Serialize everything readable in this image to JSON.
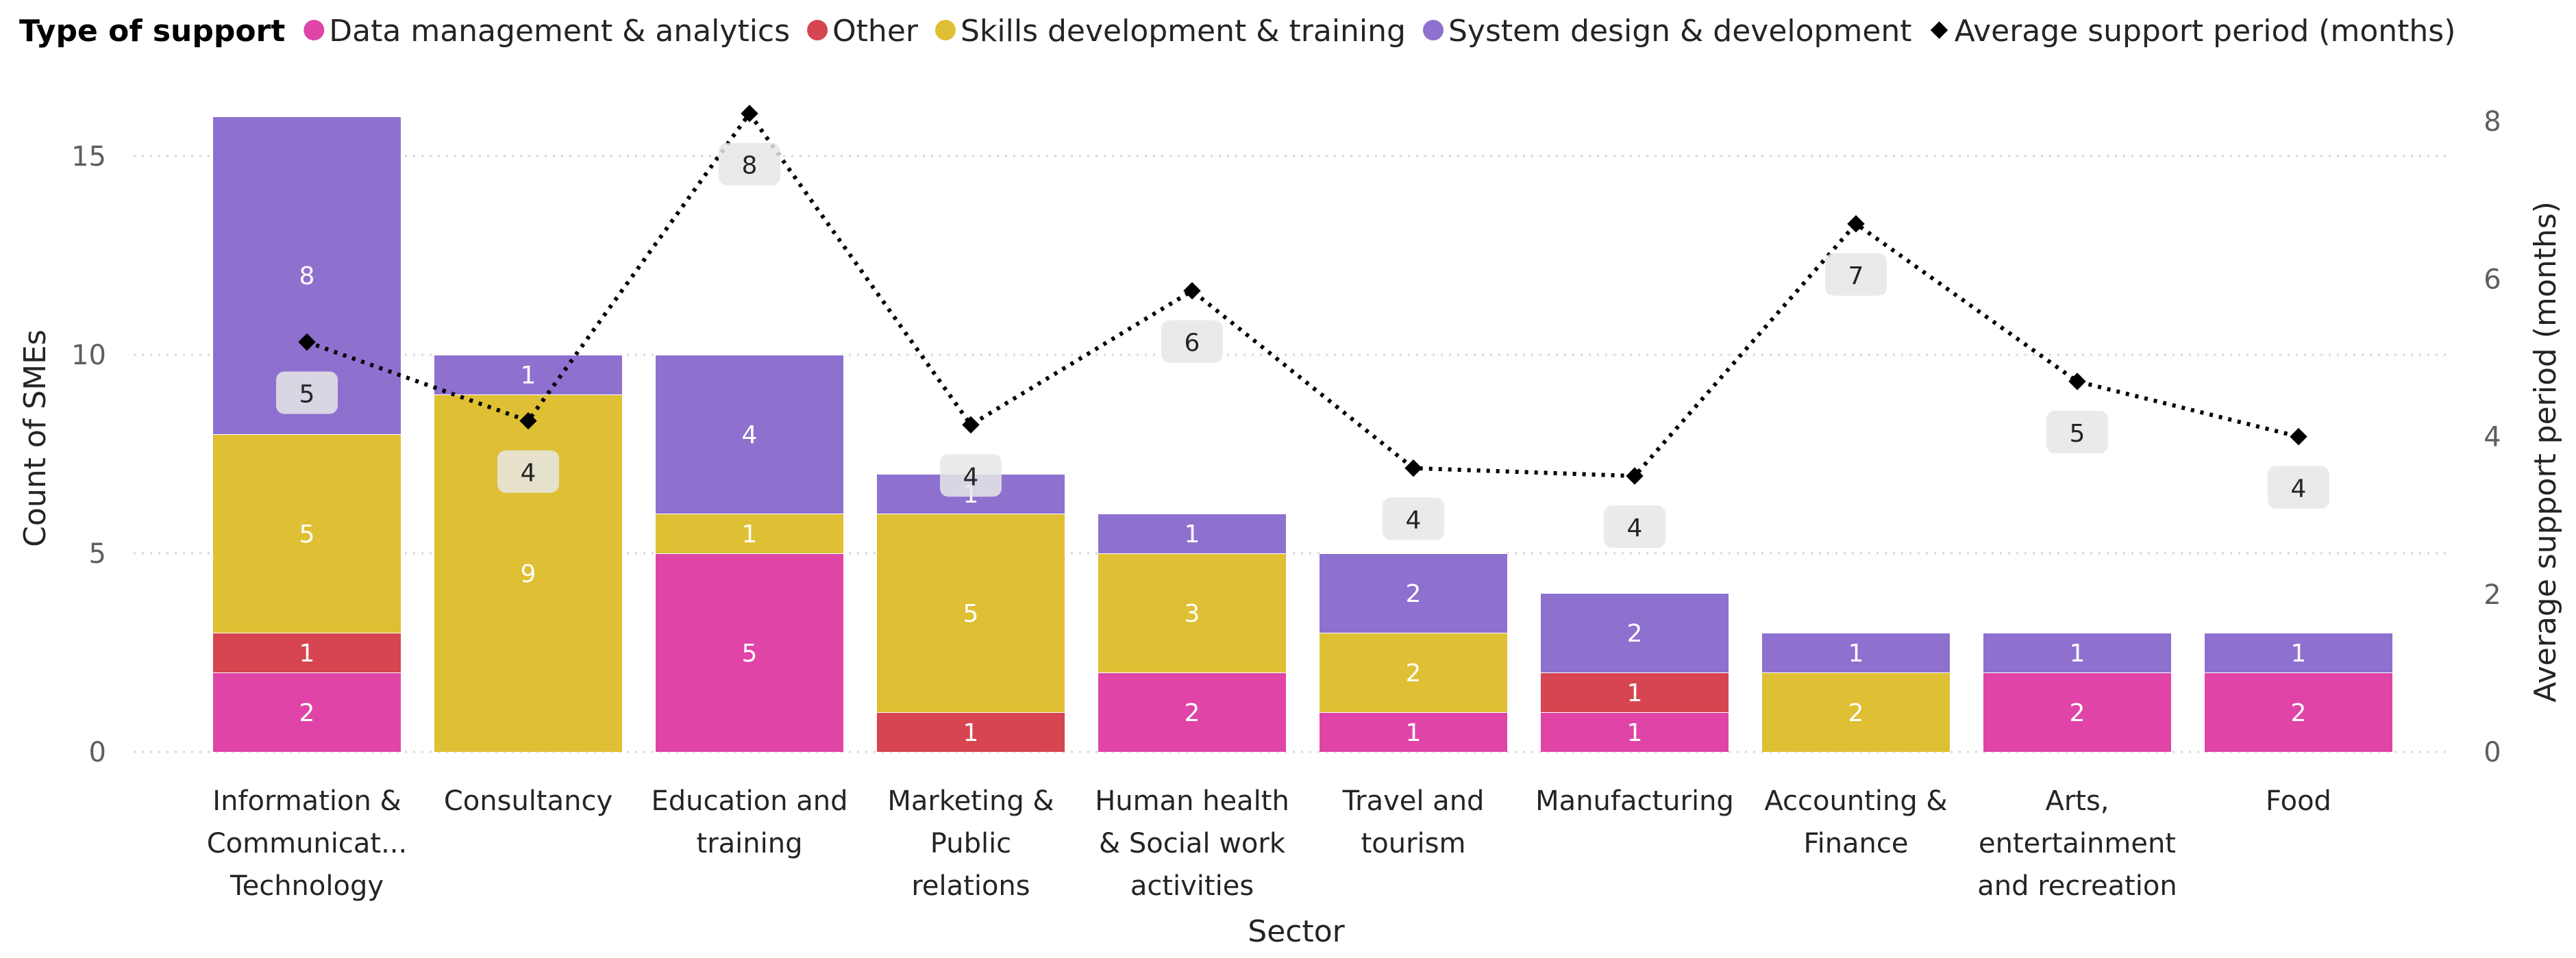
{
  "legend": {
    "title": "Type of support",
    "items": [
      {
        "label": "Data management & analytics",
        "color": "#E044A7",
        "marker": "circle"
      },
      {
        "label": "Other",
        "color": "#D64550",
        "marker": "circle"
      },
      {
        "label": "Skills development & training",
        "color": "#DFBF33",
        "marker": "circle"
      },
      {
        "label": "System design & development",
        "color": "#8E70CF",
        "marker": "circle"
      },
      {
        "label": "Average support period (months)",
        "color": "#000000",
        "marker": "diamond"
      }
    ]
  },
  "chart_data": {
    "type": "bar",
    "stacked": true,
    "xlabel": "Sector",
    "ylabel": "Count of SMEs",
    "y2label": "Average support period (months)",
    "ylim": [
      0,
      16
    ],
    "y2lim": [
      0,
      8
    ],
    "yticks": [
      0,
      5,
      10,
      15
    ],
    "y2ticks": [
      0,
      2,
      4,
      6,
      8
    ],
    "grid": true,
    "legend_position": "top-left",
    "categories": [
      [
        "Information &",
        "Communicat...",
        "Technology"
      ],
      [
        "Consultancy"
      ],
      [
        "Education and",
        "training"
      ],
      [
        "Marketing &",
        "Public",
        "relations"
      ],
      [
        "Human health",
        "& Social work",
        "activities"
      ],
      [
        "Travel and",
        "tourism"
      ],
      [
        "Manufacturing"
      ],
      [
        "Accounting &",
        "Finance"
      ],
      [
        "Arts,",
        "entertainment",
        "and recreation"
      ],
      [
        "Food"
      ]
    ],
    "series": [
      {
        "name": "Data management & analytics",
        "color": "#E044A7",
        "values": [
          2,
          0,
          5,
          0,
          2,
          1,
          1,
          0,
          2,
          2
        ]
      },
      {
        "name": "Other",
        "color": "#D64550",
        "values": [
          1,
          0,
          0,
          1,
          0,
          0,
          1,
          0,
          0,
          0
        ]
      },
      {
        "name": "Skills development & training",
        "color": "#DFBF33",
        "values": [
          5,
          9,
          1,
          5,
          3,
          2,
          0,
          2,
          0,
          0
        ]
      },
      {
        "name": "System design & development",
        "color": "#8E70CF",
        "values": [
          8,
          1,
          4,
          1,
          1,
          2,
          2,
          1,
          1,
          1
        ]
      }
    ],
    "line": {
      "name": "Average support period (months)",
      "axis": "right",
      "color": "#000000",
      "values": [
        5.2,
        4.2,
        8.1,
        4.15,
        5.85,
        3.6,
        3.5,
        6.7,
        4.7,
        4.0
      ],
      "labels": [
        "5",
        "4",
        "8",
        "4",
        "6",
        "4",
        "4",
        "7",
        "5",
        "4"
      ]
    }
  }
}
